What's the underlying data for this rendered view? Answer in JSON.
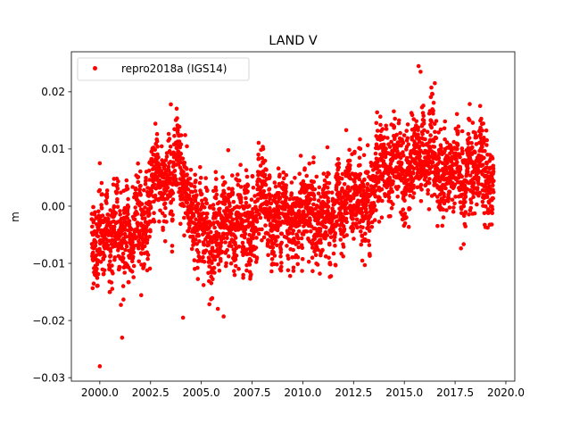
{
  "chart_data": {
    "type": "scatter",
    "title": "LAND V",
    "xlabel": "",
    "ylabel": "m",
    "xlim": [
      1998.6,
      2020.44
    ],
    "ylim": [
      -0.0306,
      0.027
    ],
    "xticks": [
      2000.0,
      2002.5,
      2005.0,
      2007.5,
      2010.0,
      2012.5,
      2015.0,
      2017.5,
      2020.0
    ],
    "xtick_labels": [
      "2000.0",
      "2002.5",
      "2005.0",
      "2007.5",
      "2010.0",
      "2012.5",
      "2015.0",
      "2017.5",
      "2020.0"
    ],
    "yticks": [
      0.02,
      0.01,
      0.0,
      -0.01,
      -0.02,
      -0.03
    ],
    "ytick_labels": [
      "0.02",
      "0.01",
      "0.00",
      "−0.01",
      "−0.02",
      "−0.03"
    ],
    "grid": false,
    "legend": {
      "placement": "top-left",
      "entries": [
        "repro2018a (IGS14)"
      ]
    },
    "series": [
      {
        "name": "repro2018a (IGS14)",
        "color": "#ff0000",
        "note": "dense daily time series; estimated as half-year mean levels plus scatter",
        "x_start": 1999.6,
        "x_end": 2019.4,
        "step_years": 0.0055,
        "scatter_std": 0.0038,
        "trend_x": [
          1999.6,
          2000.0,
          2000.5,
          2001.0,
          2001.5,
          2002.0,
          2002.5,
          2003.0,
          2003.5,
          2004.0,
          2004.5,
          2005.0,
          2005.5,
          2006.0,
          2006.5,
          2007.0,
          2007.5,
          2008.0,
          2008.5,
          2009.0,
          2009.5,
          2010.0,
          2010.5,
          2011.0,
          2011.5,
          2012.0,
          2012.5,
          2013.0,
          2013.5,
          2014.0,
          2014.5,
          2015.0,
          2015.5,
          2016.0,
          2016.5,
          2017.0,
          2017.5,
          2018.0,
          2018.5,
          2019.0,
          2019.4
        ],
        "trend_y": [
          -0.005,
          -0.006,
          -0.005,
          -0.004,
          -0.006,
          -0.002,
          0.002,
          0.004,
          0.006,
          0.003,
          0.0,
          -0.004,
          -0.003,
          -0.004,
          -0.003,
          -0.004,
          -0.003,
          -0.002,
          -0.003,
          0.0,
          -0.001,
          -0.001,
          -0.002,
          -0.003,
          -0.004,
          -0.001,
          0.001,
          0.002,
          0.003,
          0.006,
          0.008,
          0.008,
          0.007,
          0.009,
          0.008,
          0.004,
          0.006,
          0.006,
          0.006,
          0.005,
          0.003
        ],
        "outliers": [
          [
            2000.0,
            -0.028
          ],
          [
            2001.1,
            -0.023
          ],
          [
            2003.5,
            0.0178
          ],
          [
            2004.1,
            -0.0195
          ],
          [
            2006.1,
            -0.0193
          ],
          [
            2015.7,
            0.0245
          ],
          [
            2015.8,
            0.0235
          ],
          [
            2016.5,
            0.0215
          ],
          [
            2000.0,
            0.0075
          ]
        ]
      }
    ]
  }
}
